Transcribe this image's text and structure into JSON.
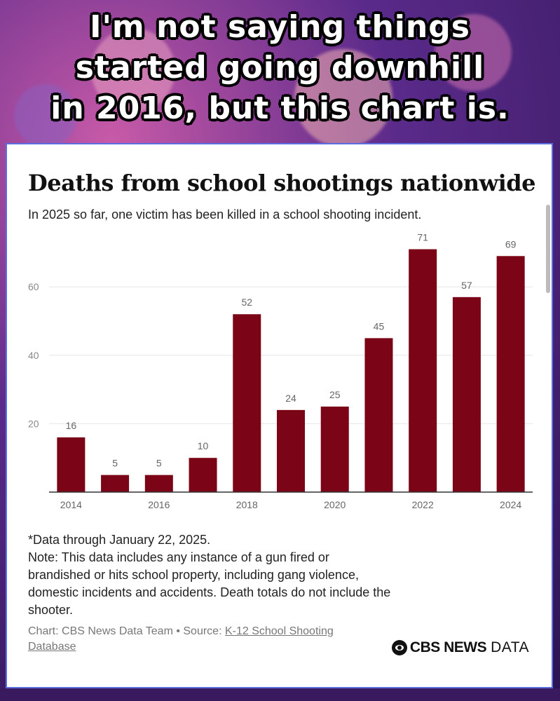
{
  "meme": {
    "caption_lines": [
      "I'm not saying things",
      "started going downhill",
      "in 2016, but this chart is."
    ]
  },
  "chart_data": {
    "type": "bar",
    "title": "Deaths from school shootings nationwide",
    "subtitle": "In 2025 so far, one victim has been killed in a school shooting incident.",
    "categories": [
      "2014",
      "2015",
      "2016",
      "2017",
      "2018",
      "2019",
      "2020",
      "2021",
      "2022",
      "2023",
      "2024"
    ],
    "values": [
      16,
      5,
      5,
      10,
      52,
      24,
      25,
      45,
      71,
      57,
      69
    ],
    "x_tick_labels": [
      "2014",
      "2016",
      "2018",
      "2020",
      "2022",
      "2024"
    ],
    "y_ticks": [
      20,
      40,
      60
    ],
    "ylim": [
      0,
      75
    ],
    "xlabel": "",
    "ylabel": "",
    "grid": true,
    "bar_color": "#7b0416"
  },
  "notes": {
    "data_through": "*Data through January 22, 2025.",
    "note": "Note: This data includes any instance of a gun fired or brandished or hits school property, including gang violence, domestic incidents and accidents. Death totals do not include the shooter."
  },
  "credit": {
    "prefix": "Chart: CBS News Data Team • Source: ",
    "source_link": "K-12 School Shooting Database"
  },
  "brand": {
    "strong": "CBS NEWS",
    "light": "DATA"
  }
}
